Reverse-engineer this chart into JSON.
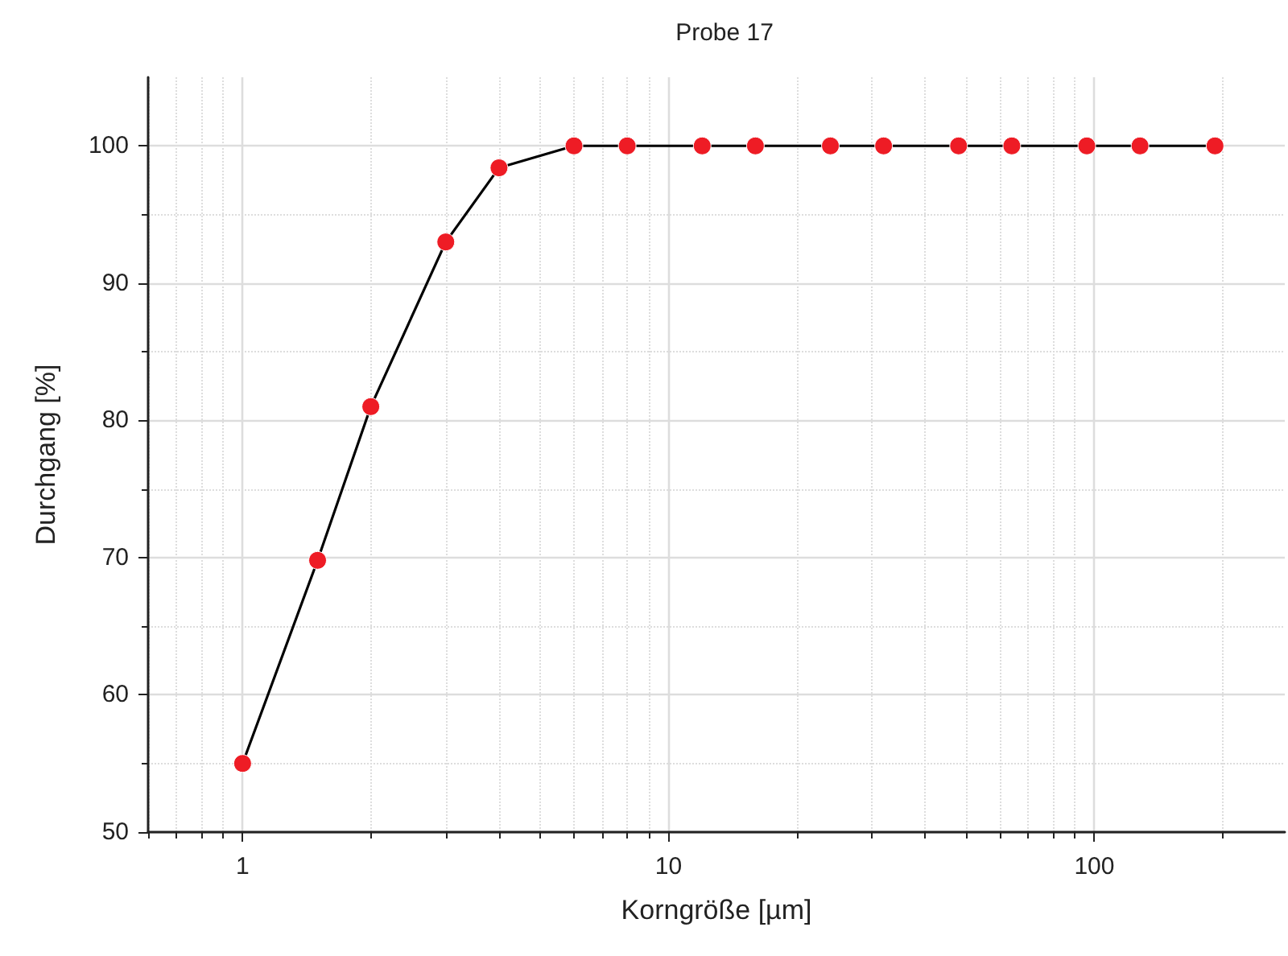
{
  "chart_data": {
    "type": "line",
    "title": "Probe 17",
    "xlabel": "Korngröße [µm]",
    "ylabel": "Durchgang [%]",
    "x": [
      1,
      1.5,
      2,
      3,
      4,
      6,
      8,
      12,
      16,
      24,
      32,
      48,
      64,
      96,
      128,
      192
    ],
    "series": [
      {
        "color": "#000000",
        "values": [
          55,
          69.8,
          81,
          93,
          98.4,
          100,
          100,
          100,
          100,
          100,
          100,
          100,
          100,
          100,
          100,
          100
        ]
      }
    ],
    "marker": "circle",
    "log": "x",
    "xlim": [
      0.6,
      280
    ],
    "xticks": [
      1,
      10,
      100
    ],
    "ylim": [
      50,
      105
    ],
    "yticks": [
      50,
      60,
      70,
      80,
      90,
      100
    ],
    "grid": true
  }
}
